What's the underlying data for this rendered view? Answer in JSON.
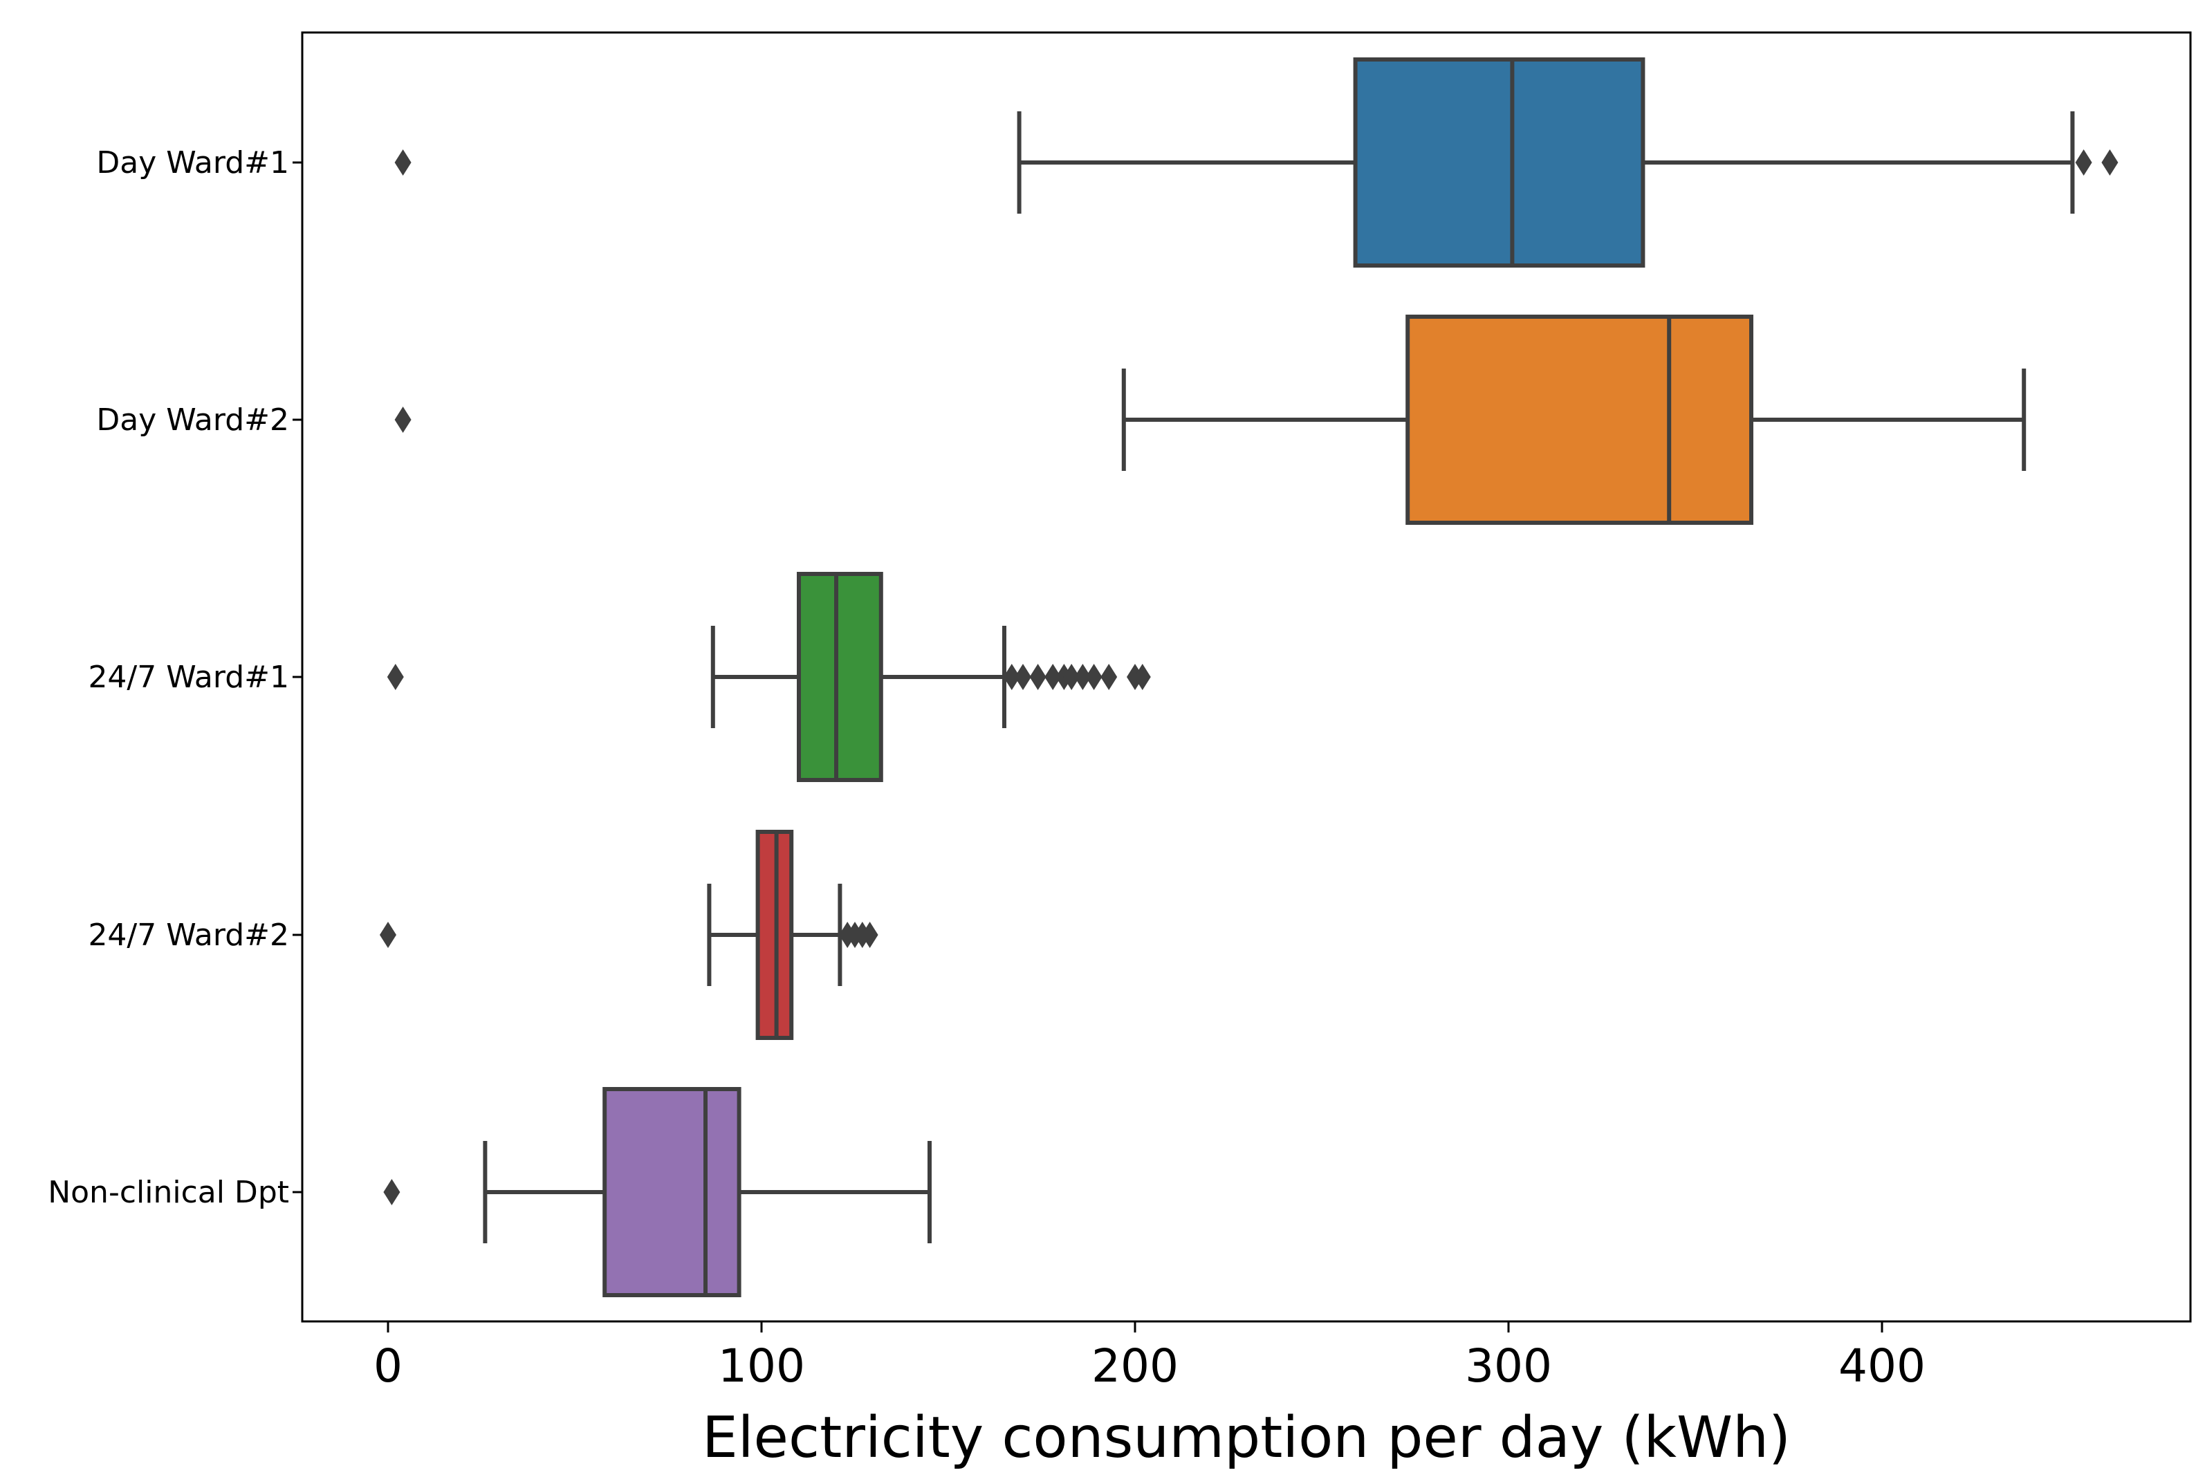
{
  "chart_data": {
    "type": "boxplot",
    "orientation": "horizontal",
    "xlabel": "Electricity consumption per day (kWh)",
    "ylabel": "",
    "xlim": [
      -23,
      483
    ],
    "xticks": [
      0,
      100,
      200,
      300,
      400
    ],
    "grid": false,
    "legend": "none",
    "line_color": "#3f3f3f",
    "series": [
      {
        "category": "Day Ward#1",
        "color": "#3274a1",
        "whisker_low": 169,
        "q1": 259,
        "median": 301,
        "q3": 336,
        "whisker_high": 451,
        "outliers": [
          4,
          454,
          461
        ]
      },
      {
        "category": "Day Ward#2",
        "color": "#e1812c",
        "whisker_low": 197,
        "q1": 273,
        "median": 343,
        "q3": 365,
        "whisker_high": 438,
        "outliers": [
          4
        ]
      },
      {
        "category": "24/7 Ward#1",
        "color": "#3a923a",
        "whisker_low": 87,
        "q1": 110,
        "median": 120,
        "q3": 132,
        "whisker_high": 165,
        "outliers": [
          2,
          167,
          170,
          174,
          178,
          181,
          183,
          186,
          189,
          193,
          200,
          202
        ]
      },
      {
        "category": "24/7 Ward#2",
        "color": "#c03d3e",
        "whisker_low": 86,
        "q1": 99,
        "median": 104,
        "q3": 108,
        "whisker_high": 121,
        "outliers": [
          0,
          123,
          125,
          127,
          129
        ]
      },
      {
        "category": "Non-clinical Dpt",
        "color": "#9372b2",
        "whisker_low": 26,
        "q1": 58,
        "median": 85,
        "q3": 94,
        "whisker_high": 145,
        "outliers": [
          1
        ]
      }
    ]
  }
}
